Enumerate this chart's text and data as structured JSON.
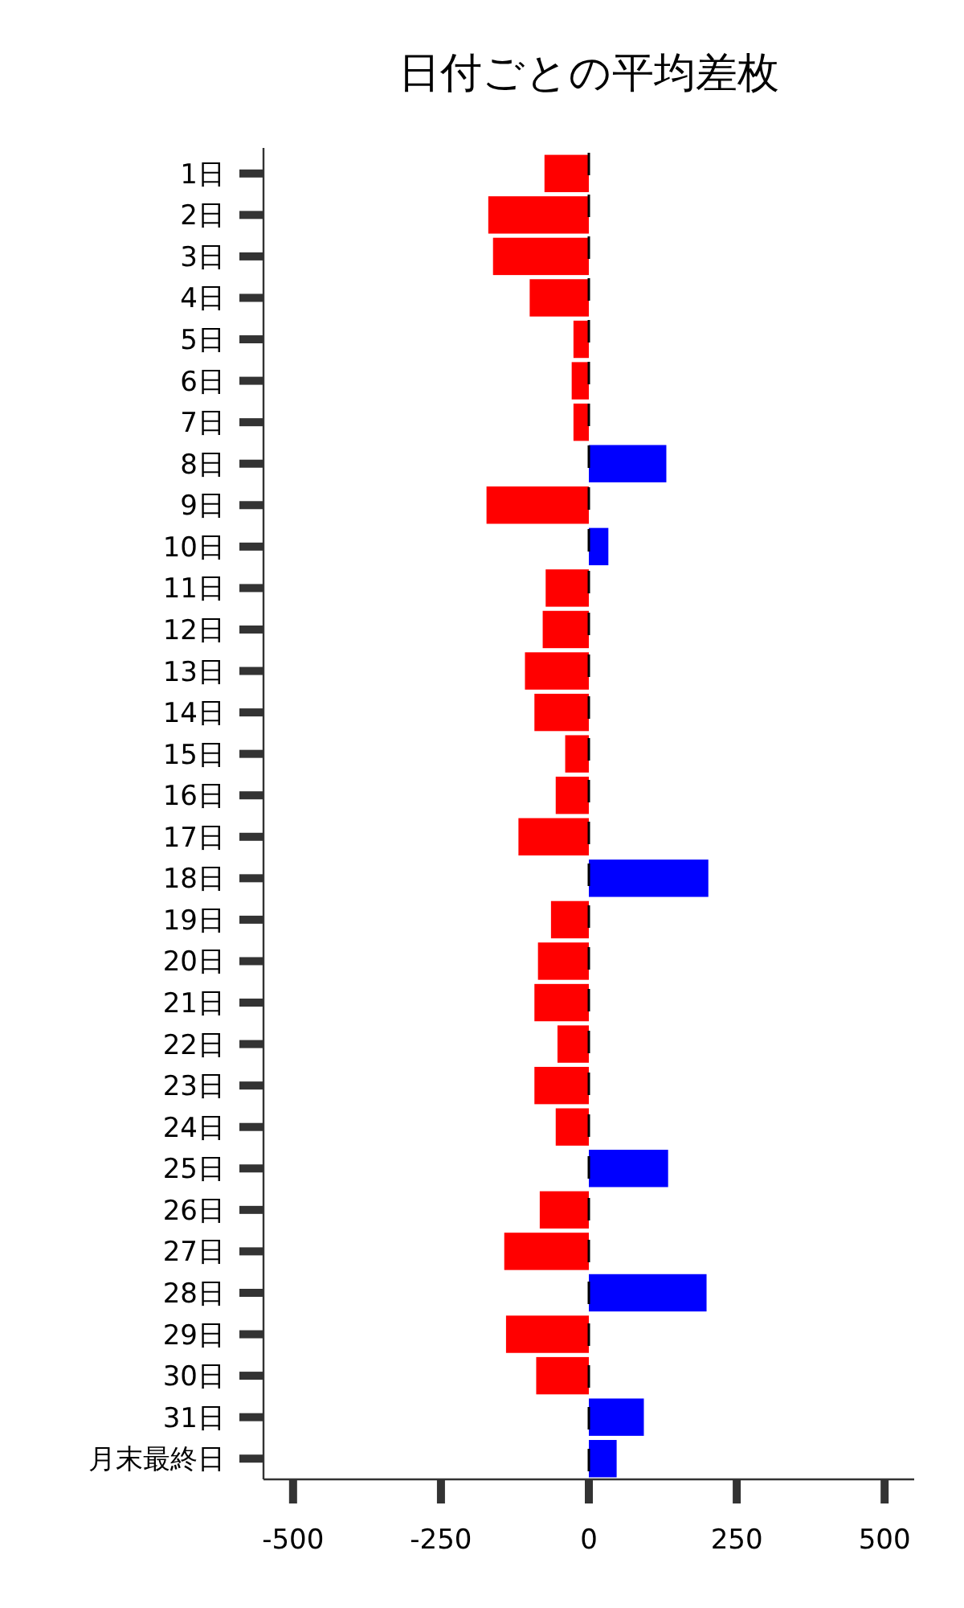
{
  "chart_data": {
    "type": "bar",
    "orientation": "horizontal",
    "title": "日付ごとの平均差枚",
    "categories": [
      "1日",
      "2日",
      "3日",
      "4日",
      "5日",
      "6日",
      "7日",
      "8日",
      "9日",
      "10日",
      "11日",
      "12日",
      "13日",
      "14日",
      "15日",
      "16日",
      "17日",
      "18日",
      "19日",
      "20日",
      "21日",
      "22日",
      "23日",
      "24日",
      "25日",
      "26日",
      "27日",
      "28日",
      "29日",
      "30日",
      "31日",
      "月末最終日"
    ],
    "values": [
      -75,
      -170,
      -162,
      -100,
      -26,
      -29,
      -26,
      131,
      -173,
      33,
      -73,
      -78,
      -108,
      -92,
      -40,
      -56,
      -119,
      202,
      -64,
      -86,
      -92,
      -53,
      -92,
      -56,
      134,
      -83,
      -143,
      199,
      -140,
      -89,
      93,
      47
    ],
    "colors": [
      "#ff0000",
      "#ff0000",
      "#ff0000",
      "#ff0000",
      "#ff0000",
      "#ff0000",
      "#ff0000",
      "#0000ff",
      "#ff0000",
      "#0000ff",
      "#ff0000",
      "#ff0000",
      "#ff0000",
      "#ff0000",
      "#ff0000",
      "#ff0000",
      "#ff0000",
      "#0000ff",
      "#ff0000",
      "#ff0000",
      "#ff0000",
      "#ff0000",
      "#ff0000",
      "#ff0000",
      "#0000ff",
      "#ff0000",
      "#ff0000",
      "#0000ff",
      "#ff0000",
      "#ff0000",
      "#0000ff",
      "#0000ff"
    ],
    "xlim": [
      -550,
      550
    ],
    "xticks": [
      -500,
      -250,
      0,
      250,
      500
    ],
    "ref_lines": [
      {
        "axis": "x",
        "value": 0,
        "color": "#000000",
        "line_style": "dashed"
      }
    ]
  }
}
